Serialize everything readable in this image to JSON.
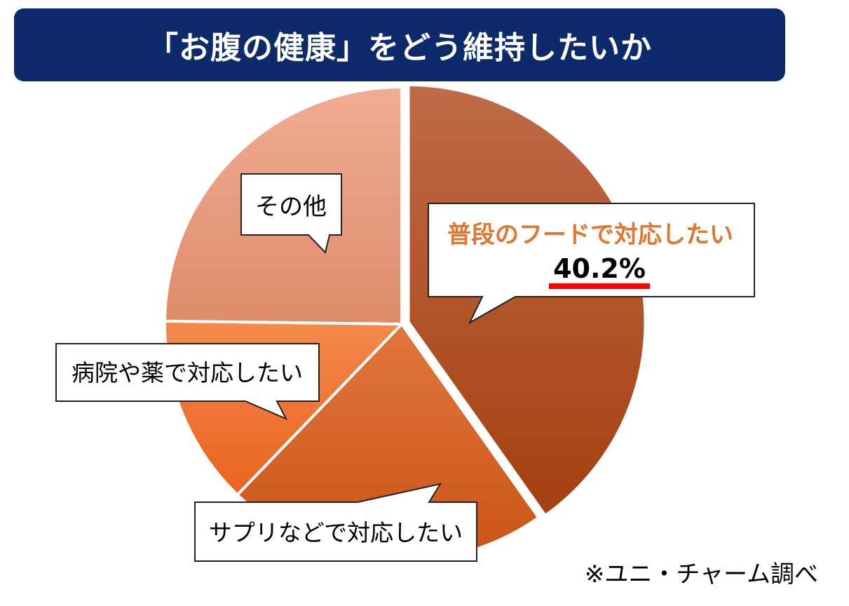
{
  "title": "「お腹の健康」をどう維持したいか",
  "source_note": "※ユニ・チャーム調べ",
  "chart_data": {
    "type": "pie",
    "title": "「お腹の健康」をどう維持したいか",
    "highlight_value_label": "40.2%",
    "slices": [
      {
        "label": "普段のフードで対応したい",
        "value": 40.2,
        "color_top": "#bf6a48",
        "color_bottom": "#a4400f",
        "exploded": true
      },
      {
        "label": "サプリなどで対応したい",
        "value": 22.0,
        "color_top": "#e2763c",
        "color_bottom": "#c95316",
        "exploded": false
      },
      {
        "label": "病院や薬で対応したい",
        "value": 13.0,
        "color_top": "#f3894c",
        "color_bottom": "#e9641f",
        "exploded": false
      },
      {
        "label": "その他",
        "value": 24.8,
        "color_top": "#f0ac94",
        "color_bottom": "#de8c6a",
        "exploded": false
      }
    ],
    "highlight_label_color": "#e2762e",
    "underline_color": "#ff0000"
  }
}
